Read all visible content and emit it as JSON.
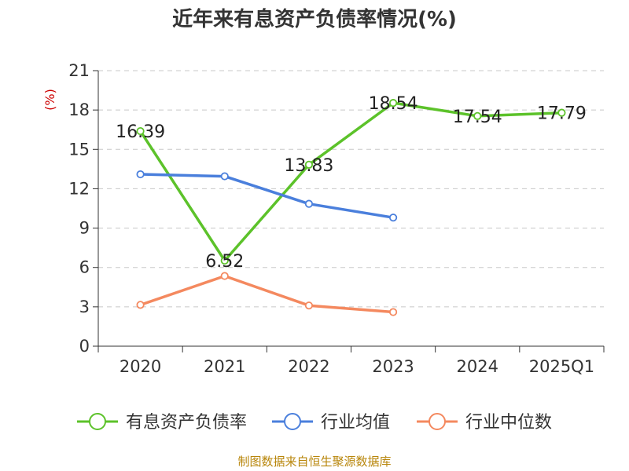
{
  "title": "近年来有息资产负债率情况(%)",
  "source_note": "制图数据来自恒生聚源数据库",
  "chart_data": {
    "type": "line",
    "title": "近年来有息资产负债率情况(%)",
    "xlabel": "",
    "ylabel": "(%)",
    "categories": [
      "2020",
      "2021",
      "2022",
      "2023",
      "2024",
      "2025Q1"
    ],
    "ylim": [
      0,
      21
    ],
    "yticks": [
      0,
      3,
      6,
      9,
      12,
      15,
      18,
      21
    ],
    "grid": true,
    "legend_position": "bottom",
    "series": [
      {
        "name": "有息资产负债率",
        "color": "#5cc22a",
        "values": [
          16.39,
          6.52,
          13.83,
          18.54,
          17.54,
          17.79
        ],
        "data_labels": [
          "16.39",
          "6.52",
          "13.83",
          "18.54",
          "17.54",
          "17.79"
        ]
      },
      {
        "name": "行业均值",
        "color": "#4a7fdc",
        "values": [
          13.1,
          12.95,
          10.85,
          9.8,
          null,
          null
        ]
      },
      {
        "name": "行业中位数",
        "color": "#f4895f",
        "values": [
          3.15,
          5.35,
          3.1,
          2.6,
          null,
          null
        ]
      }
    ]
  }
}
